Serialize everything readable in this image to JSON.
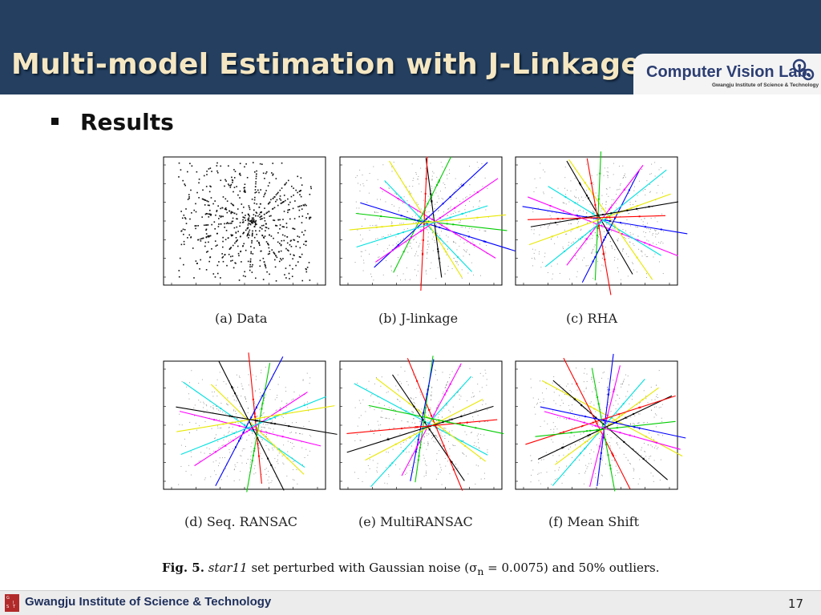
{
  "slide": {
    "title": "Multi-model Estimation with J-Linkage",
    "bullet": "Results",
    "page_number": "17"
  },
  "logo": {
    "name": "Computer Vision Lab.",
    "subtitle": "Gwangju Institute of Science & Technology"
  },
  "footer": {
    "institution": "Gwangju Institute of Science & Technology"
  },
  "figure": {
    "caption_label": "Fig. 5.",
    "caption_dataset": "star11",
    "caption_rest": " set perturbed with Gaussian noise (σ",
    "caption_sub": "n",
    "caption_tail": " = 0.0075) and 50% outliers.",
    "panels": [
      {
        "label": "(a) Data"
      },
      {
        "label": "(b) J-linkage"
      },
      {
        "label": "(c) RHA"
      },
      {
        "label": "(d) Seq. RANSAC"
      },
      {
        "label": "(e) MultiRANSAC"
      },
      {
        "label": "(f) Mean Shift"
      }
    ],
    "colors": [
      "#ff0000",
      "#00cc00",
      "#0000ff",
      "#ff00ff",
      "#00e0e0",
      "#e8e800",
      "#000000"
    ]
  }
}
